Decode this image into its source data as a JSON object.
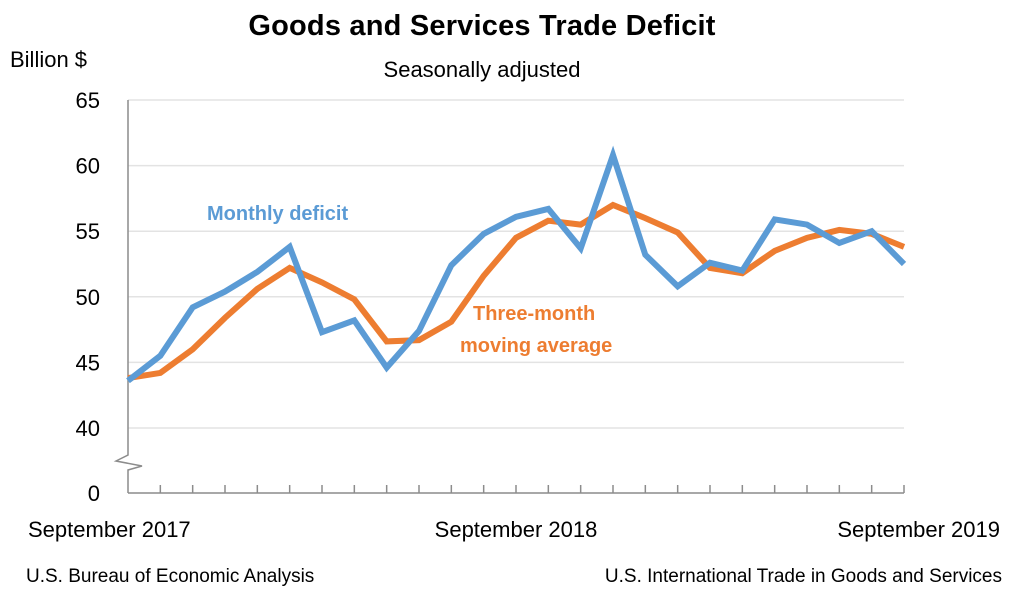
{
  "chart_data": {
    "type": "line",
    "title": "Goods and Services Trade Deficit",
    "subtitle": "Seasonally adjusted",
    "ylabel": "Billion $",
    "xlabel": "",
    "ylim": [
      40,
      65
    ],
    "axis_break": true,
    "y_ticks": [
      65,
      60,
      55,
      50,
      45,
      40,
      0
    ],
    "x_tick_labels": [
      {
        "index": 0,
        "label": "September 2017"
      },
      {
        "index": 12,
        "label": "September 2018"
      },
      {
        "index": 24,
        "label": "September 2019"
      }
    ],
    "grid": true,
    "x": [
      "Sep 2017",
      "Oct 2017",
      "Nov 2017",
      "Dec 2017",
      "Jan 2018",
      "Feb 2018",
      "Mar 2018",
      "Apr 2018",
      "May 2018",
      "Jun 2018",
      "Jul 2018",
      "Aug 2018",
      "Sep 2018",
      "Oct 2018",
      "Nov 2018",
      "Dec 2018",
      "Jan 2019",
      "Feb 2019",
      "Mar 2019",
      "Apr 2019",
      "May 2019",
      "Jun 2019",
      "Jul 2019",
      "Aug 2019",
      "Sep 2019"
    ],
    "series": [
      {
        "name": "Monthly deficit",
        "color": "#5b9bd5",
        "values": [
          43.6,
          45.5,
          49.2,
          50.4,
          51.9,
          53.8,
          47.3,
          48.2,
          44.6,
          47.4,
          52.4,
          54.8,
          56.1,
          56.7,
          53.7,
          60.8,
          53.2,
          50.8,
          52.6,
          52.0,
          55.9,
          55.5,
          54.1,
          55.0,
          52.5
        ]
      },
      {
        "name": "Three-month moving average",
        "color": "#ed7d31",
        "values": [
          43.8,
          44.2,
          46.0,
          48.4,
          50.6,
          52.2,
          51.1,
          49.8,
          46.6,
          46.7,
          48.1,
          51.6,
          54.5,
          55.8,
          55.5,
          57.0,
          56.0,
          54.9,
          52.2,
          51.8,
          53.5,
          54.5,
          55.1,
          54.8,
          53.8
        ]
      }
    ],
    "annotations": [
      {
        "text": "Monthly deficit",
        "series": 0
      },
      {
        "text": "Three-month",
        "series": 1
      },
      {
        "text": "moving average",
        "series": 1
      }
    ]
  },
  "footer": {
    "source_left": "U.S. Bureau of Economic Analysis",
    "source_right": "U.S. International Trade in Goods and Services"
  }
}
